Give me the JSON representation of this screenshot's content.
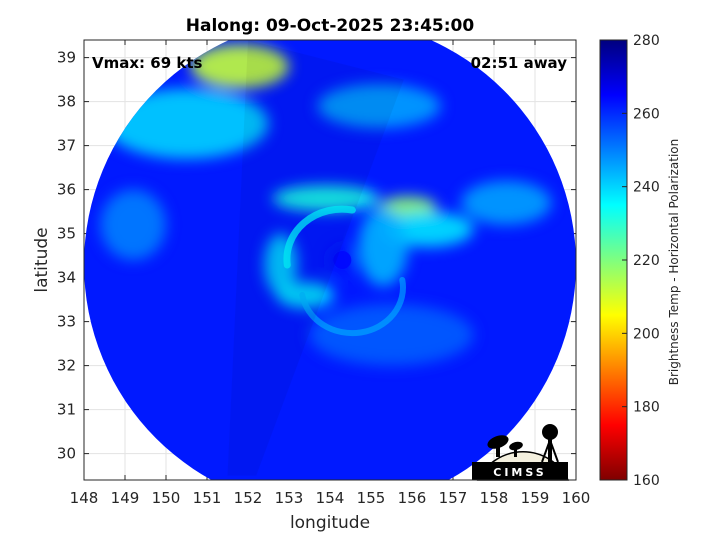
{
  "chart_data": {
    "type": "heatmap",
    "title": "Halong: 09-Oct-2025 23:45:00",
    "xlabel": "longitude",
    "ylabel": "latitude",
    "xlim": [
      148,
      160
    ],
    "ylim": [
      29.4,
      39.4
    ],
    "x_ticks": [
      "148",
      "149",
      "150",
      "151",
      "152",
      "153",
      "154",
      "155",
      "156",
      "157",
      "158",
      "159",
      "160"
    ],
    "y_ticks": [
      "30",
      "31",
      "32",
      "33",
      "34",
      "35",
      "36",
      "37",
      "38",
      "39"
    ],
    "grid": true,
    "annotations": {
      "left": "Vmax: 69 kts",
      "right": "02:51 away"
    },
    "colorbar": {
      "label": "Brightness Temp - Horizontal Polarization",
      "range": [
        160,
        280
      ],
      "ticks": [
        "160",
        "180",
        "200",
        "220",
        "240",
        "260",
        "280"
      ],
      "colormap": [
        "#7f0000",
        "#ff0000",
        "#ff7f00",
        "#ffff00",
        "#7fff7f",
        "#00ffff",
        "#007fff",
        "#0000ff",
        "#00007f"
      ]
    },
    "storm_center": {
      "lon": 154.3,
      "lat": 34.4
    },
    "swath_center": {
      "lon": 154.0,
      "lat": 34.3
    },
    "swath_radius_deg_lon": 6.0,
    "background_tb": 262,
    "features": [
      {
        "lon": 153.9,
        "lat": 35.8,
        "rx": 1.3,
        "ry": 0.3,
        "tb": 232
      },
      {
        "lon": 155.9,
        "lat": 35.6,
        "rx": 0.7,
        "ry": 0.25,
        "tb": 218
      },
      {
        "lon": 156.4,
        "lat": 35.1,
        "rx": 1.1,
        "ry": 0.4,
        "tb": 238
      },
      {
        "lon": 155.3,
        "lat": 34.7,
        "rx": 0.6,
        "ry": 0.9,
        "tb": 244
      },
      {
        "lon": 152.8,
        "lat": 34.3,
        "rx": 0.4,
        "ry": 0.7,
        "tb": 240
      },
      {
        "lon": 153.4,
        "lat": 33.6,
        "rx": 0.7,
        "ry": 0.3,
        "tb": 238
      },
      {
        "lon": 154.3,
        "lat": 34.4,
        "rx": 0.35,
        "ry": 0.35,
        "tb": 262
      },
      {
        "lon": 151.8,
        "lat": 38.8,
        "rx": 1.2,
        "ry": 0.5,
        "tb": 212
      },
      {
        "lon": 150.5,
        "lat": 37.5,
        "rx": 2.0,
        "ry": 0.8,
        "tb": 240
      },
      {
        "lon": 158.3,
        "lat": 35.7,
        "rx": 1.1,
        "ry": 0.5,
        "tb": 246
      },
      {
        "lon": 155.2,
        "lat": 37.9,
        "rx": 1.5,
        "ry": 0.5,
        "tb": 246
      },
      {
        "lon": 149.2,
        "lat": 35.2,
        "rx": 0.8,
        "ry": 0.8,
        "tb": 250
      },
      {
        "lon": 155.5,
        "lat": 32.7,
        "rx": 2.0,
        "ry": 0.7,
        "tb": 254
      }
    ],
    "logo_text": "CIMSS"
  }
}
